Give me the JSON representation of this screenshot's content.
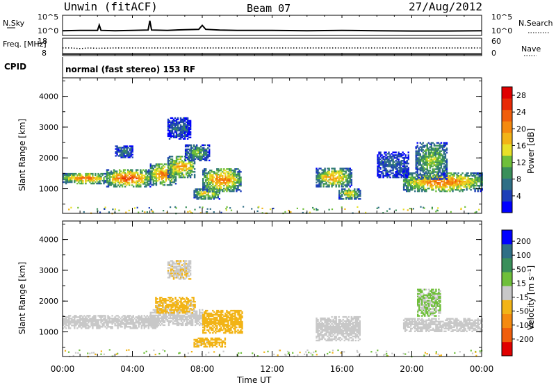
{
  "header": {
    "station": "Unwin (fitACF)",
    "beam": "Beam 07",
    "date": "27/Aug/2012"
  },
  "chart_data": [
    {
      "type": "line",
      "panel": "noise",
      "left_label": "N.Sky",
      "right_label": "N.Search",
      "left_ticks": [
        "10^5",
        "10^0"
      ],
      "right_ticks": [
        "10^5",
        "10^0"
      ],
      "x_range": [
        "00:00",
        "24:00"
      ],
      "series": [
        {
          "name": "N.Sky",
          "x": [
            0,
            1,
            2,
            2.1,
            2.2,
            3,
            4,
            4.9,
            5,
            5.1,
            6,
            7,
            7.8,
            8,
            8.2,
            9,
            10,
            12,
            14,
            16,
            18,
            20,
            22,
            24
          ],
          "y": [
            0.8,
            0.9,
            0.9,
            2.5,
            0.9,
            0.8,
            0.9,
            1,
            3.8,
            1,
            0.9,
            1.1,
            1.2,
            2.4,
            1.2,
            1,
            0.9,
            0.9,
            0.8,
            0.9,
            0.8,
            0.7,
            0.7,
            0.8
          ]
        }
      ]
    },
    {
      "type": "line",
      "panel": "frequency",
      "left_label": "Freq. [MHz]",
      "right_label": "Nave",
      "left_ticks": [
        "18",
        "8"
      ],
      "right_ticks": [
        "60",
        "0"
      ],
      "series": [
        {
          "x": [
            0,
            0.5,
            1,
            1.5,
            2,
            3,
            24
          ],
          "y": [
            13,
            13,
            12.6,
            13,
            12.8,
            13,
            13
          ]
        },
        {
          "x": [
            0,
            24
          ],
          "y": [
            9,
            9
          ]
        }
      ]
    },
    {
      "type": "text",
      "panel": "cpid",
      "label": "CPID",
      "value": "normal (fast stereo) 153 RF"
    },
    {
      "type": "heatmap",
      "panel": "power",
      "ylabel": "Slant Range [km]",
      "y_ticks": [
        "1000",
        "2000",
        "3000",
        "4000"
      ],
      "ylim": [
        200,
        4600
      ],
      "colorbar": {
        "label": "Power [dB]",
        "ticks": [
          "4",
          "8",
          "12",
          "16",
          "20",
          "24",
          "28"
        ],
        "range": [
          0,
          30
        ],
        "colors": [
          "#0000ff",
          "#1d3fb8",
          "#2f6f86",
          "#3a8f5a",
          "#6fbf3a",
          "#e8e028",
          "#f2b417",
          "#f58a0f",
          "#f05e0c",
          "#e82a06",
          "#e00000"
        ]
      },
      "bands": [
        {
          "t0": 0.0,
          "t1": 2.5,
          "r_lo": 1150,
          "r_hi": 1500,
          "val": 22
        },
        {
          "t0": 2.5,
          "t1": 5.0,
          "r_lo": 1050,
          "r_hi": 1600,
          "val": 25
        },
        {
          "t0": 5.0,
          "t1": 6.5,
          "r_lo": 1100,
          "r_hi": 1800,
          "val": 22
        },
        {
          "t0": 6.0,
          "t1": 7.6,
          "r_lo": 1350,
          "r_hi": 2050,
          "val": 20
        },
        {
          "t0": 7.0,
          "t1": 8.4,
          "r_lo": 1900,
          "r_hi": 2400,
          "val": 12
        },
        {
          "t0": 7.5,
          "t1": 9.0,
          "r_lo": 650,
          "r_hi": 1000,
          "val": 18
        },
        {
          "t0": 8.0,
          "t1": 10.2,
          "r_lo": 900,
          "r_hi": 1650,
          "val": 22
        },
        {
          "t0": 6.0,
          "t1": 7.3,
          "r_lo": 2600,
          "r_hi": 3300,
          "val": 7
        },
        {
          "t0": 3.0,
          "t1": 4.0,
          "r_lo": 2000,
          "r_hi": 2400,
          "val": 8
        },
        {
          "t0": 14.5,
          "t1": 16.5,
          "r_lo": 1050,
          "r_hi": 1650,
          "val": 20
        },
        {
          "t0": 15.8,
          "t1": 17.0,
          "r_lo": 650,
          "r_hi": 1000,
          "val": 17
        },
        {
          "t0": 19.5,
          "t1": 24.0,
          "r_lo": 900,
          "r_hi": 1500,
          "val": 23
        },
        {
          "t0": 20.2,
          "t1": 22.0,
          "r_lo": 1300,
          "r_hi": 2500,
          "val": 14
        },
        {
          "t0": 18.0,
          "t1": 19.8,
          "r_lo": 1350,
          "r_hi": 2200,
          "val": 7
        }
      ]
    },
    {
      "type": "heatmap",
      "panel": "velocity",
      "ylabel": "Slant Range [km]",
      "y_ticks": [
        "1000",
        "2000",
        "3000",
        "4000"
      ],
      "ylim": [
        200,
        4600
      ],
      "colorbar": {
        "label": "Velocity [m s⁻¹]",
        "ticks": [
          "200",
          "100",
          "50",
          "15",
          "-15",
          "-50",
          "-100",
          "-200"
        ],
        "range": [
          -250,
          250
        ],
        "colors": [
          "#e00000",
          "#f05e0c",
          "#f58a0f",
          "#f2b417",
          "#c8c8c8",
          "#6fbf3a",
          "#3a8f5a",
          "#2f6f86",
          "#0000ff"
        ]
      },
      "bands": [
        {
          "t0": 0.0,
          "t1": 5.5,
          "r_lo": 1100,
          "r_hi": 1550,
          "val": 0
        },
        {
          "t0": 5.0,
          "t1": 8.0,
          "r_lo": 1200,
          "r_hi": 1700,
          "val": 0
        },
        {
          "t0": 5.3,
          "t1": 7.6,
          "r_lo": 1600,
          "r_hi": 2100,
          "val": -40
        },
        {
          "t0": 8.0,
          "t1": 10.3,
          "r_lo": 950,
          "r_hi": 1700,
          "val": -60
        },
        {
          "t0": 7.5,
          "t1": 9.3,
          "r_lo": 500,
          "r_hi": 800,
          "val": -40
        },
        {
          "t0": 14.5,
          "t1": 17.0,
          "r_lo": 700,
          "r_hi": 1500,
          "val": 0
        },
        {
          "t0": 19.5,
          "t1": 24.0,
          "r_lo": 1000,
          "r_hi": 1450,
          "val": 0
        },
        {
          "t0": 20.3,
          "t1": 21.6,
          "r_lo": 1500,
          "r_hi": 2400,
          "val": 30
        },
        {
          "t0": 6.0,
          "t1": 7.3,
          "r_lo": 2700,
          "r_hi": 3300,
          "val": -20
        }
      ]
    }
  ],
  "x_axis": {
    "ticks": [
      "00:00",
      "04:00",
      "08:00",
      "12:00",
      "16:00",
      "20:00",
      "00:00"
    ],
    "label": "Time UT"
  }
}
